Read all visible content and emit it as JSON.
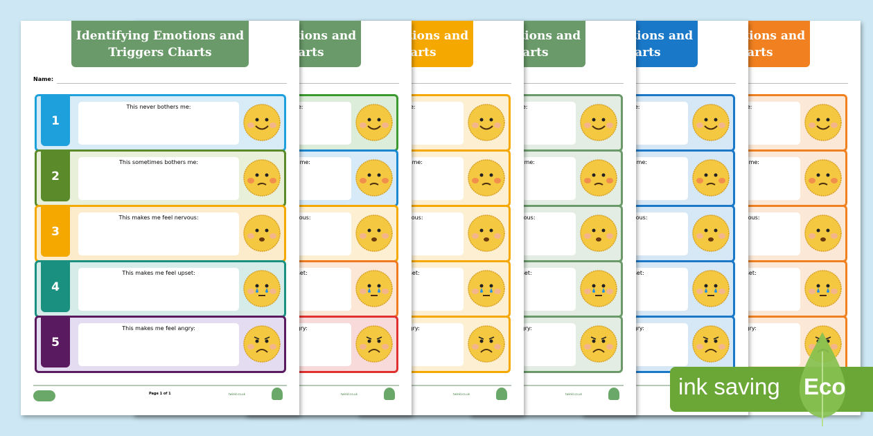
{
  "worksheet": {
    "title": "Identifying Emotions and Triggers Charts",
    "name_label": "Name:",
    "page_number": "Page 1 of 1",
    "footer_right": "twinkl.co.uk",
    "rows": [
      {
        "number": "1",
        "text": "This never bothers me:",
        "face": "happy",
        "color": "#1ea0dc",
        "bg": "#d8ecf8"
      },
      {
        "number": "2",
        "text": "This sometimes bothers me:",
        "face": "worried",
        "color": "#5a8a2a",
        "bg": "#e8f0da"
      },
      {
        "number": "3",
        "text": "This makes me feel nervous:",
        "face": "nervous",
        "color": "#f5a800",
        "bg": "#fdeccc"
      },
      {
        "number": "4",
        "text": "This makes me feel upset:",
        "face": "crying",
        "color": "#1a9080",
        "bg": "#d5ece8"
      },
      {
        "number": "5",
        "text": "This makes me feel angry:",
        "face": "angry",
        "color": "#5a1a60",
        "bg": "#e4dcf0"
      }
    ]
  },
  "variants": [
    {
      "header": "#6a9a6a",
      "rows": [
        "#3a9a30",
        "#1a88d0",
        "#f5a800",
        "#f07a20",
        "#e03030"
      ]
    },
    {
      "header": "#f5a800",
      "rows": [
        "#f5a800",
        "#f5a800",
        "#f5a800",
        "#f5a800",
        "#f5a800"
      ]
    },
    {
      "header": "#6a9a6a",
      "rows": [
        "#6a9a6a",
        "#6a9a6a",
        "#6a9a6a",
        "#6a9a6a",
        "#6a9a6a"
      ]
    },
    {
      "header": "#1a78c8",
      "rows": [
        "#1a78c8",
        "#1a78c8",
        "#1a78c8",
        "#1a78c8",
        "#1a78c8"
      ]
    },
    {
      "header": "#f08020",
      "rows": [
        "#f08020",
        "#f08020",
        "#f08020",
        "#f08020",
        "#f08020"
      ]
    }
  ],
  "eco_badge": {
    "label": "ink saving",
    "eco": "Eco",
    "color": "#6aa736"
  }
}
